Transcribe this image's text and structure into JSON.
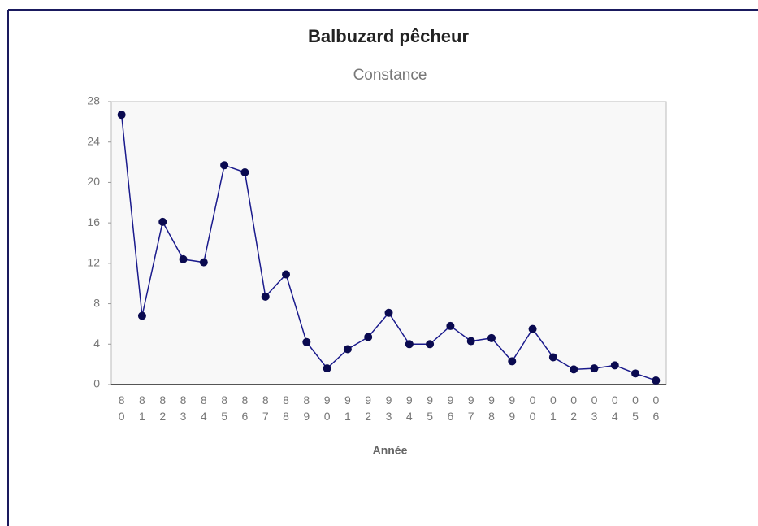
{
  "chart_data": {
    "type": "line",
    "title": "Balbuzard pêcheur",
    "subtitle": "Constance",
    "x_label": "Année",
    "categories": [
      "80",
      "81",
      "82",
      "83",
      "84",
      "85",
      "86",
      "87",
      "88",
      "89",
      "90",
      "91",
      "92",
      "93",
      "94",
      "95",
      "96",
      "97",
      "98",
      "99",
      "00",
      "01",
      "02",
      "03",
      "04",
      "05",
      "06"
    ],
    "series": [
      {
        "name": "Constance",
        "color": "#1a1a8c",
        "values": [
          26.7,
          6.8,
          16.1,
          12.4,
          12.1,
          21.7,
          21.0,
          8.7,
          10.9,
          4.2,
          1.6,
          3.5,
          4.7,
          7.1,
          4.0,
          4.0,
          5.8,
          4.3,
          4.6,
          2.3,
          5.5,
          2.7,
          1.5,
          1.6,
          1.9,
          1.1,
          0.4
        ]
      }
    ],
    "ylim": [
      0,
      28
    ],
    "yticks": [
      0,
      4,
      8,
      12,
      16,
      20,
      24,
      28
    ],
    "grid": false
  }
}
